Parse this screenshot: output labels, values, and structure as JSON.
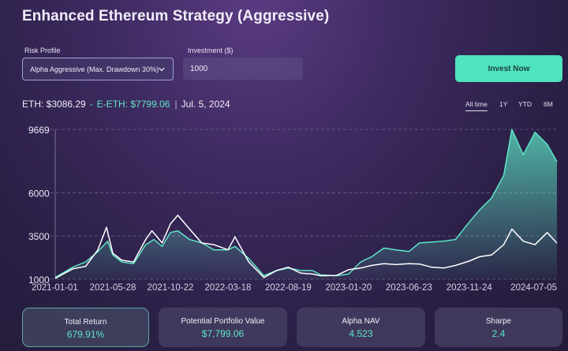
{
  "header": {
    "title": "Enhanced Ethereum Strategy (Aggressive)"
  },
  "controls": {
    "risk_label": "Risk Profile",
    "risk_value": "Alpha Aggressive (Max. Drawdown 30%)",
    "investment_label": "Investment ($)",
    "investment_value": "1000",
    "invest_button": "Invest Now"
  },
  "price_row": {
    "eth": "ETH: $3086.29",
    "dash": "-",
    "eeth": "E-ETH: $7799.06",
    "sep": "|",
    "date": "Jul. 5, 2024"
  },
  "ranges": [
    {
      "label": "All time",
      "active": true
    },
    {
      "label": "1Y",
      "active": false
    },
    {
      "label": "YTD",
      "active": false
    },
    {
      "label": "6M",
      "active": false
    }
  ],
  "chart_data": {
    "type": "area",
    "y_ticks": [
      "9669",
      "6000",
      "3500",
      "1000"
    ],
    "x_ticks": [
      "2021-01-01",
      "2021-05-28",
      "2021-10-22",
      "2022-03-18",
      "2022-08-19",
      "2023-01-20",
      "2023-06-23",
      "2023-11-24",
      "2024-07-05"
    ],
    "ylim": [
      1000,
      9669
    ],
    "grid": "horizontal dashed",
    "series": [
      {
        "color": "#5de5c5",
        "fill": true,
        "points": [
          [
            "2021-01-01",
            1100
          ],
          [
            "2021-02-15",
            1700
          ],
          [
            "2021-03-20",
            2000
          ],
          [
            "2021-04-20",
            2600
          ],
          [
            "2021-05-15",
            3200
          ],
          [
            "2021-05-28",
            2400
          ],
          [
            "2021-06-20",
            2000
          ],
          [
            "2021-07-20",
            1900
          ],
          [
            "2021-08-20",
            3000
          ],
          [
            "2021-09-10",
            3300
          ],
          [
            "2021-10-01",
            2900
          ],
          [
            "2021-10-22",
            3700
          ],
          [
            "2021-11-10",
            3800
          ],
          [
            "2021-12-10",
            3300
          ],
          [
            "2022-01-10",
            3100
          ],
          [
            "2022-02-10",
            2700
          ],
          [
            "2022-03-18",
            2700
          ],
          [
            "2022-04-05",
            2900
          ],
          [
            "2022-05-10",
            2200
          ],
          [
            "2022-06-18",
            1200
          ],
          [
            "2022-07-20",
            1500
          ],
          [
            "2022-08-19",
            1650
          ],
          [
            "2022-09-20",
            1500
          ],
          [
            "2022-10-20",
            1500
          ],
          [
            "2022-11-10",
            1250
          ],
          [
            "2022-12-20",
            1200
          ],
          [
            "2023-01-20",
            1300
          ],
          [
            "2023-02-20",
            2000
          ],
          [
            "2023-03-20",
            2300
          ],
          [
            "2023-04-20",
            2800
          ],
          [
            "2023-05-20",
            2700
          ],
          [
            "2023-06-23",
            2600
          ],
          [
            "2023-07-20",
            3100
          ],
          [
            "2023-08-20",
            3150
          ],
          [
            "2023-09-20",
            3200
          ],
          [
            "2023-10-20",
            3300
          ],
          [
            "2023-11-24",
            4300
          ],
          [
            "2023-12-20",
            5000
          ],
          [
            "2024-01-20",
            5700
          ],
          [
            "2024-02-20",
            7000
          ],
          [
            "2024-03-12",
            9669
          ],
          [
            "2024-04-10",
            8200
          ],
          [
            "2024-05-10",
            9500
          ],
          [
            "2024-06-10",
            8800
          ],
          [
            "2024-07-05",
            7799
          ]
        ]
      },
      {
        "color": "#ffffff",
        "fill": false,
        "points": [
          [
            "2021-01-01",
            1050
          ],
          [
            "2021-02-15",
            1600
          ],
          [
            "2021-03-20",
            1750
          ],
          [
            "2021-04-20",
            2700
          ],
          [
            "2021-05-12",
            4000
          ],
          [
            "2021-05-28",
            2500
          ],
          [
            "2021-06-20",
            2100
          ],
          [
            "2021-07-20",
            2000
          ],
          [
            "2021-08-20",
            3300
          ],
          [
            "2021-09-05",
            3800
          ],
          [
            "2021-10-01",
            3100
          ],
          [
            "2021-10-22",
            4200
          ],
          [
            "2021-11-10",
            4700
          ],
          [
            "2021-12-10",
            3900
          ],
          [
            "2022-01-10",
            3100
          ],
          [
            "2022-02-10",
            3000
          ],
          [
            "2022-03-18",
            2700
          ],
          [
            "2022-04-05",
            3450
          ],
          [
            "2022-05-10",
            2000
          ],
          [
            "2022-06-18",
            1100
          ],
          [
            "2022-07-20",
            1500
          ],
          [
            "2022-08-19",
            1700
          ],
          [
            "2022-09-20",
            1350
          ],
          [
            "2022-10-20",
            1300
          ],
          [
            "2022-11-10",
            1200
          ],
          [
            "2022-12-20",
            1220
          ],
          [
            "2023-01-20",
            1550
          ],
          [
            "2023-02-20",
            1650
          ],
          [
            "2023-03-20",
            1800
          ],
          [
            "2023-04-20",
            1900
          ],
          [
            "2023-05-20",
            1850
          ],
          [
            "2023-06-23",
            1900
          ],
          [
            "2023-07-20",
            1880
          ],
          [
            "2023-08-20",
            1700
          ],
          [
            "2023-09-20",
            1650
          ],
          [
            "2023-10-20",
            1800
          ],
          [
            "2023-11-24",
            2050
          ],
          [
            "2023-12-20",
            2300
          ],
          [
            "2024-01-20",
            2400
          ],
          [
            "2024-02-20",
            3000
          ],
          [
            "2024-03-12",
            3900
          ],
          [
            "2024-04-10",
            3200
          ],
          [
            "2024-05-10",
            3000
          ],
          [
            "2024-06-10",
            3700
          ],
          [
            "2024-07-05",
            3086
          ]
        ]
      }
    ]
  },
  "stats": [
    {
      "label": "Total Return",
      "value": "679.91%"
    },
    {
      "label": "Potential Portfolio Value",
      "value": "$7,799.06"
    },
    {
      "label": "Alpha NAV",
      "value": "4.523"
    },
    {
      "label": "Sharpe",
      "value": "2.4"
    }
  ]
}
